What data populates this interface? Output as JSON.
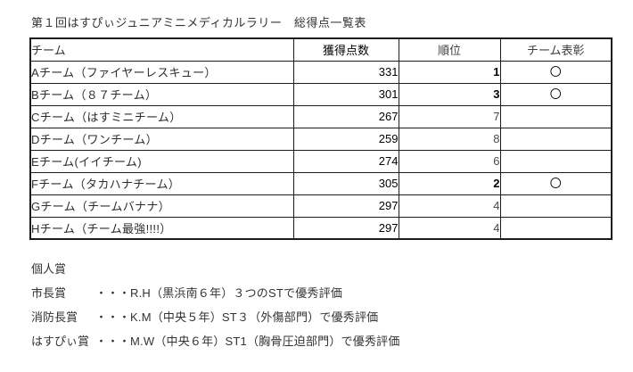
{
  "title": "第１回はすぴぃジュニアミニメディカルラリー　総得点一覧表",
  "table": {
    "headers": {
      "team": "チーム",
      "score": "獲得点数",
      "rank": "順位",
      "award": "チーム表彰"
    },
    "rows": [
      {
        "team": "Aチーム（ファイヤーレスキュー）",
        "score": "331",
        "rank": "1",
        "award": "〇"
      },
      {
        "team": "Bチーム（８７チーム）",
        "score": "301",
        "rank": "3",
        "award": "〇"
      },
      {
        "team": "Cチーム（はすミニチーム）",
        "score": "267",
        "rank": "7",
        "award": ""
      },
      {
        "team": "Dチーム（ワンチーム）",
        "score": "259",
        "rank": "8",
        "award": ""
      },
      {
        "team": "Eチーム(イイチーム)",
        "score": "274",
        "rank": "6",
        "award": ""
      },
      {
        "team": "Fチーム（タカハナチーム）",
        "score": "305",
        "rank": "2",
        "award": "〇"
      },
      {
        "team": "Gチーム（チームバナナ）",
        "score": "297",
        "rank": "4",
        "award": ""
      },
      {
        "team": "Hチーム（チーム最強!!!!）",
        "score": "297",
        "rank": "4",
        "award": ""
      }
    ]
  },
  "individual_awards": {
    "heading": "個人賞",
    "items": [
      {
        "label": "市長賞",
        "dots": "・・・",
        "text": "R.H（黒浜南６年）３つのSTで優秀評価"
      },
      {
        "label": "消防長賞",
        "dots": "・・・",
        "text": "K.M（中央５年）ST３（外傷部門）で優秀評価"
      },
      {
        "label": "はすぴぃ賞",
        "dots": "・・・",
        "text": "M.W（中央６年）ST1（胸骨圧迫部門）で優秀評価"
      }
    ]
  }
}
